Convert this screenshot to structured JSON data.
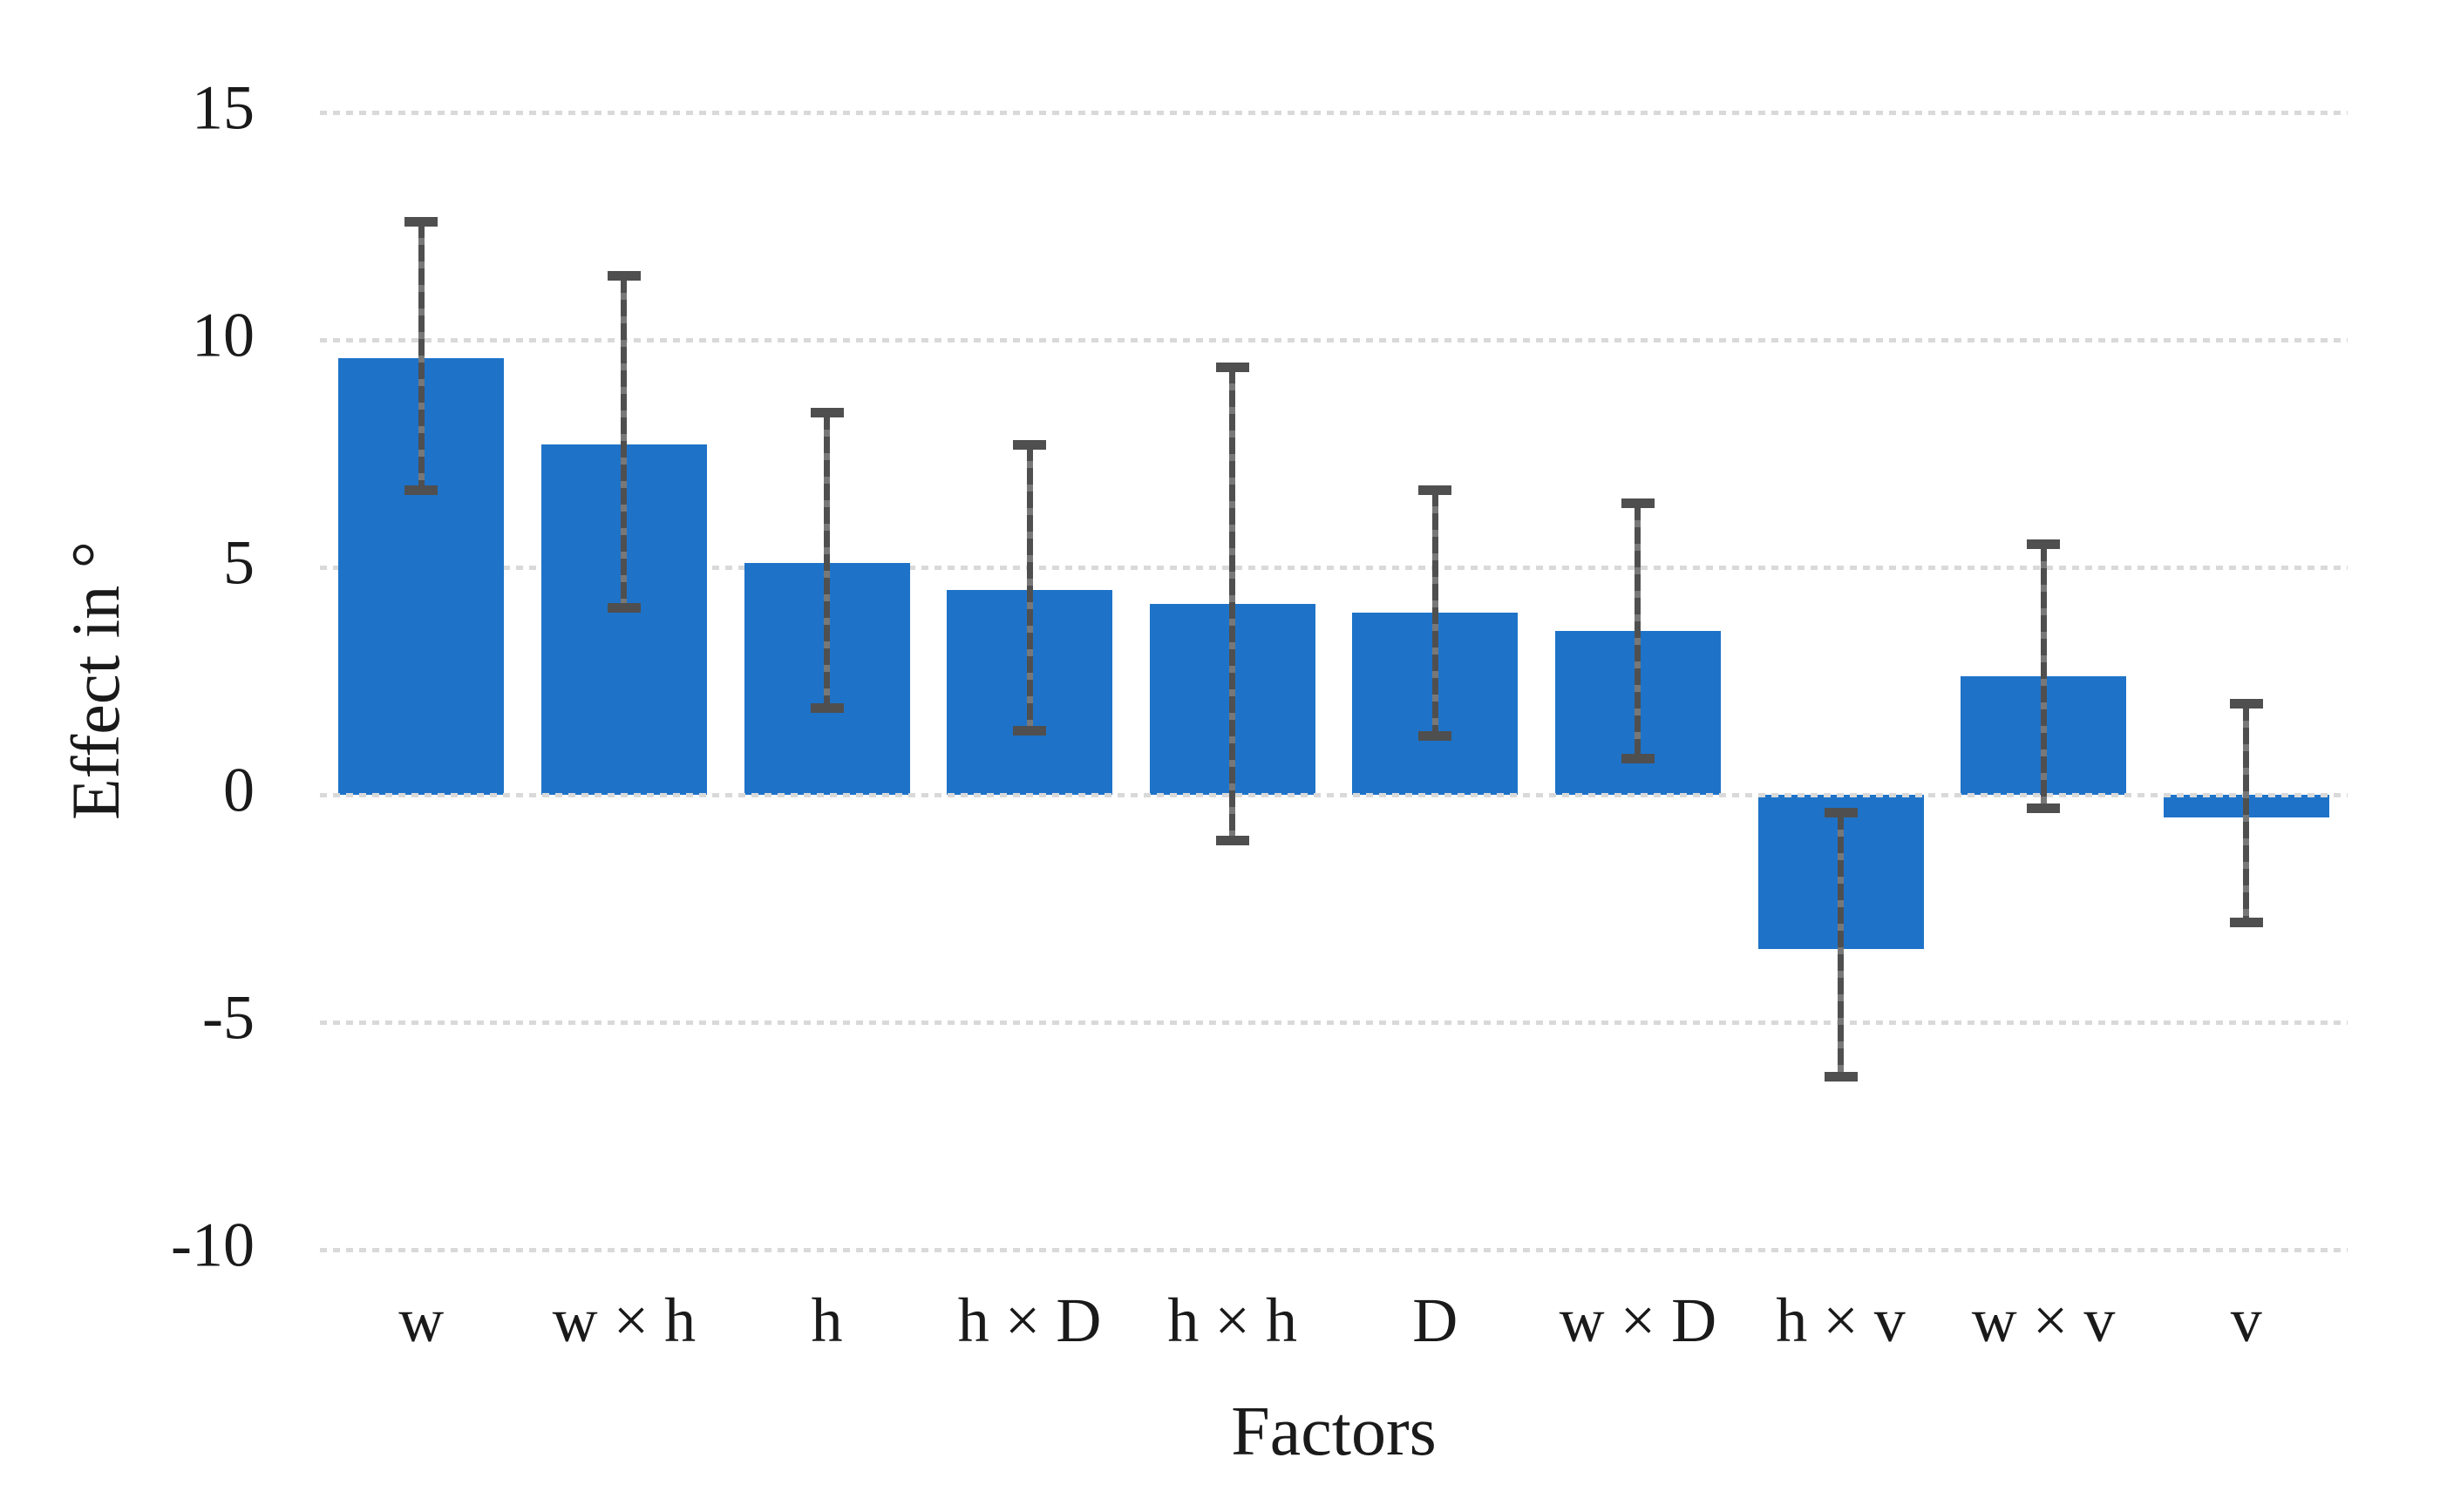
{
  "chart_data": {
    "type": "bar",
    "title": "",
    "xlabel": "Factors",
    "ylabel": "Effect in °",
    "categories": [
      "w",
      "w × h",
      "h",
      "h × D",
      "h × h",
      "D",
      "w × D",
      "h × v",
      "w × v",
      "v"
    ],
    "values": [
      9.6,
      7.7,
      5.1,
      4.5,
      4.2,
      4.0,
      3.6,
      -3.4,
      2.6,
      -0.5
    ],
    "error_high": [
      12.6,
      11.4,
      8.4,
      7.7,
      9.4,
      6.7,
      6.4,
      -0.4,
      5.5,
      2.0
    ],
    "error_low": [
      6.7,
      4.1,
      1.9,
      1.4,
      -1.0,
      1.3,
      0.8,
      -6.2,
      -0.3,
      -2.8
    ],
    "yticks": [
      15,
      10,
      5,
      0,
      -5,
      -10
    ],
    "ylim": [
      -12.5,
      16.5
    ],
    "grid": true,
    "gridline_style": "dashed",
    "legend": false,
    "error_bars": true,
    "bar_color": "#1E73C8",
    "error_bar_color": "#4F4F4F",
    "gridline_color": "#D9D9D9",
    "text_color": "#1A1A1A",
    "background_color": "#FFFFFF"
  }
}
